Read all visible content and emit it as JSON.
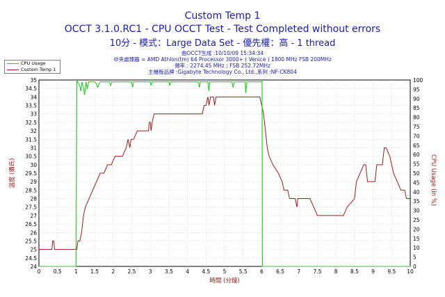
{
  "header": {
    "title": "Custom Temp 1",
    "subtitle1": "OCCT 3.1.0.RC1 - CPU OCCT Test - Test Completed without errors",
    "subtitle2": "10分 - 模式：Large Data Set - 優先權：高 - 1 thread"
  },
  "info": {
    "generated": "由OCCT生成 :10/10/09 15:34:34",
    "cpu": "中央處理器 = AMD Athlon(tm) 64 Processor 3000+ ( Venice ) 1800 MHz FSB 200MHz",
    "freq": "頻率 : 2274.45 MHz ; FSB 252.72MHz",
    "board": "主機板品牌 :Gigabyte Technology Co., Ltd.,系列 :NF-CK804"
  },
  "legend": {
    "cpu_usage": "CPU Usage",
    "custom_temp": "Custom Temp 1"
  },
  "colors": {
    "cpu_usage": "#22cc22",
    "custom_temp": "#a01818",
    "text": "#1a1ab4",
    "axis_label": "#a01818"
  },
  "chart_data": {
    "type": "line",
    "xlabel": "時間 (分鐘)",
    "ylabel_left": "溫度 (攝氏)",
    "ylabel_right": "CPU Usage (in %)",
    "xlim": [
      0,
      10
    ],
    "ylim_left": [
      24,
      35
    ],
    "ylim_right": [
      0,
      100
    ],
    "x_ticks": [
      "0",
      "0.5",
      "1",
      "1.5",
      "2",
      "2.5",
      "3",
      "3.5",
      "4",
      "4.5",
      "5",
      "5.5",
      "6",
      "6.5",
      "7",
      "7.5",
      "8",
      "8.5",
      "9",
      "9.5",
      "10"
    ],
    "y_left_ticks": [
      "24",
      "24.5",
      "25",
      "25.5",
      "26",
      "26.5",
      "27",
      "27.5",
      "28",
      "28.5",
      "29",
      "29.5",
      "30",
      "30.5",
      "31",
      "31.5",
      "32",
      "32.5",
      "33",
      "33.5",
      "34",
      "34.5",
      "35"
    ],
    "y_right_ticks": [
      "0",
      "5",
      "10",
      "15",
      "20",
      "25",
      "30",
      "35",
      "40",
      "45",
      "50",
      "55",
      "60",
      "65",
      "70",
      "75",
      "80",
      "85",
      "90",
      "95",
      "100"
    ],
    "grid": true,
    "legend_position": "top-left",
    "series": [
      {
        "name": "Custom Temp 1",
        "axis": "left",
        "x": [
          0,
          0.35,
          0.37,
          0.4,
          0.42,
          1.02,
          1.05,
          1.1,
          1.15,
          1.2,
          1.25,
          1.35,
          1.45,
          1.55,
          1.65,
          1.75,
          1.85,
          1.95,
          2.05,
          2.25,
          2.35,
          2.4,
          2.45,
          2.48,
          2.55,
          2.65,
          2.95,
          2.97,
          3.0,
          3.02,
          3.05,
          3.1,
          4.4,
          4.45,
          4.5,
          4.55,
          4.58,
          4.62,
          4.7,
          4.73,
          4.77,
          4.8,
          5.95,
          6.0,
          6.05,
          6.1,
          6.15,
          6.2,
          6.3,
          6.45,
          6.55,
          6.6,
          6.7,
          6.75,
          6.9,
          6.95,
          6.97,
          7.0,
          7.3,
          7.4,
          7.5,
          8.2,
          8.3,
          8.5,
          8.55,
          8.75,
          8.8,
          8.85,
          9.05,
          9.1,
          9.25,
          9.3,
          9.35,
          9.45,
          9.5,
          9.55,
          9.65,
          9.75,
          9.85,
          9.9,
          10.0
        ],
        "y": [
          25,
          25,
          25.5,
          25.5,
          25,
          25,
          25.5,
          25.5,
          26,
          27,
          27.5,
          28,
          28.5,
          29,
          29.5,
          29.5,
          30,
          30,
          30.5,
          30.5,
          31,
          31.5,
          31,
          31.5,
          31.5,
          32,
          32,
          32.5,
          32.5,
          32,
          32.5,
          33,
          33,
          33.5,
          33.5,
          34,
          33.5,
          34,
          34,
          33.5,
          34,
          34,
          34,
          33.5,
          33,
          32,
          31,
          30.5,
          30,
          29.5,
          29,
          28.5,
          28.5,
          28,
          28,
          27.5,
          28,
          28,
          28,
          27.5,
          27,
          27,
          27.5,
          28,
          29,
          30,
          30,
          29,
          29,
          30,
          30,
          31,
          31,
          30.5,
          30,
          29.5,
          29,
          28.5,
          28.5,
          28,
          28
        ]
      },
      {
        "name": "CPU Usage",
        "axis": "right",
        "x": [
          0,
          0.99,
          1.0,
          1.02,
          1.04,
          1.1,
          1.13,
          1.16,
          1.2,
          1.23,
          1.27,
          1.3,
          1.34,
          1.5,
          1.55,
          1.58,
          1.62,
          1.65,
          1.9,
          1.93,
          1.96,
          2.0,
          2.5,
          2.52,
          2.55,
          3.0,
          3.02,
          3.05,
          3.5,
          3.52,
          3.55,
          4.0,
          4.3,
          4.32,
          4.35,
          4.55,
          4.58,
          4.6,
          5.2,
          5.23,
          5.26,
          5.55,
          5.57,
          5.6,
          6.0,
          6.01,
          6.02,
          6.04,
          10.0
        ],
        "y": [
          0,
          0,
          0,
          100,
          99,
          97,
          94,
          99,
          96,
          92,
          99,
          95,
          99,
          99,
          98,
          96,
          98,
          99,
          99,
          97,
          99,
          99,
          99,
          96,
          99,
          99,
          97,
          99,
          99,
          97,
          99,
          99,
          99,
          96,
          99,
          99,
          94,
          99,
          99,
          96,
          99,
          99,
          93,
          99,
          99,
          100,
          0,
          0,
          0
        ]
      }
    ]
  }
}
